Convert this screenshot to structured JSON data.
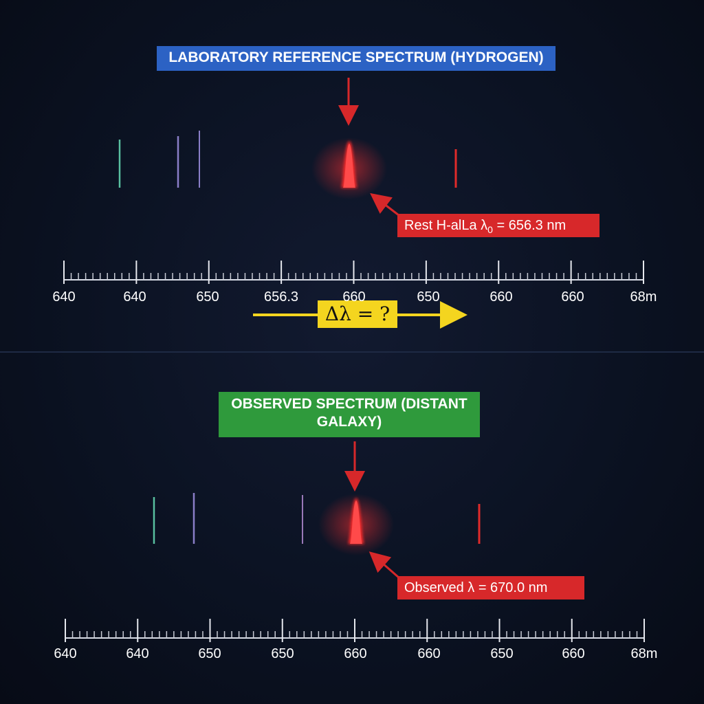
{
  "top_panel": {
    "title": "LABORATORY REFERENCE SPECTRUM (HYDROGEN)",
    "rest_label": "Rest H-alLa λ",
    "rest_subscript": "0",
    "rest_value": " = 656.3 nm",
    "delta_label": "Δλ = ?",
    "axis_labels": [
      "640",
      "640",
      "650",
      "656.3",
      "660",
      "650",
      "660",
      "660",
      "68m"
    ]
  },
  "bottom_panel": {
    "title_line1": "OBSERVED SPECTRUM (DISTANT",
    "title_line2": "GALAXY)",
    "observed_label": "Observed λ = 670.0 nm",
    "axis_labels": [
      "640",
      "640",
      "650",
      "650",
      "660",
      "660",
      "650",
      "660",
      "68m"
    ]
  },
  "colors": {
    "title_blue": "#2c62c4",
    "title_green": "#2f9a3c",
    "label_red": "#d7282a",
    "delta_yellow": "#f4d51f",
    "emission_red": "#ff2a2a"
  },
  "icons": [
    "down-arrow-icon",
    "diagonal-arrow-icon",
    "right-arrow-icon"
  ]
}
